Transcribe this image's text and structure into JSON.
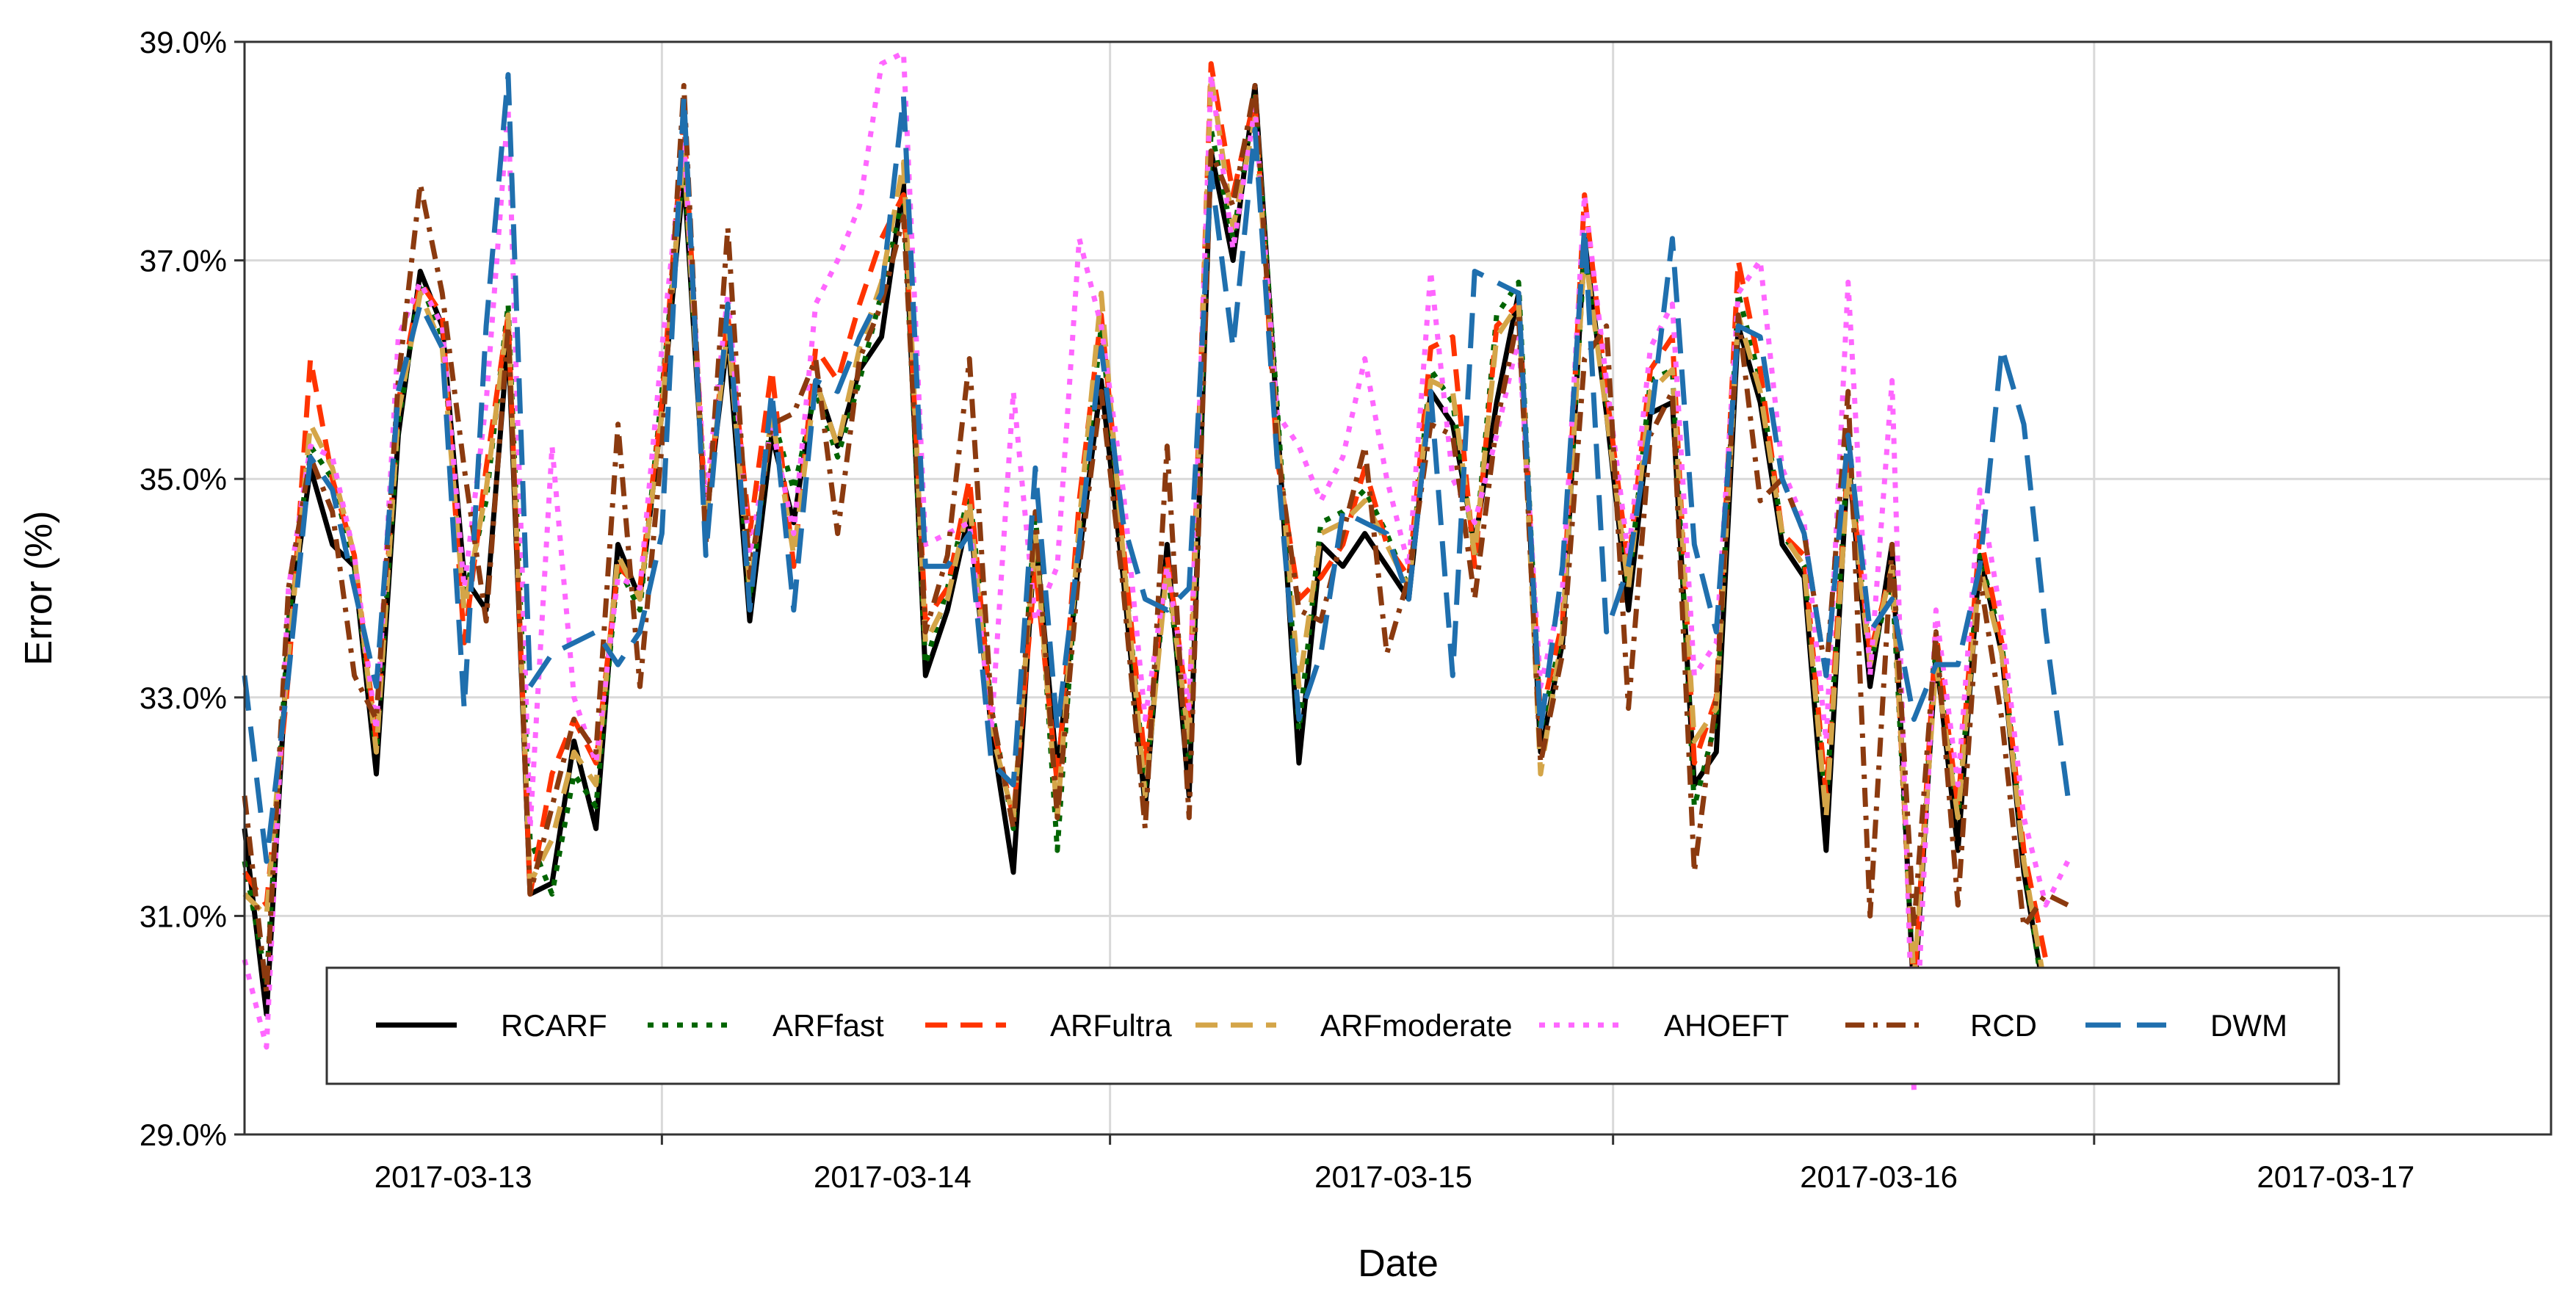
{
  "chart_data": {
    "type": "line",
    "title": "",
    "xlabel": "Date",
    "ylabel": "Error (%)",
    "ylim": [
      29.0,
      39.0
    ],
    "xlim": [
      0,
      105
    ],
    "y_ticks": [
      29.0,
      31.0,
      33.0,
      35.0,
      37.0,
      39.0
    ],
    "y_tick_labels": [
      "29.0%",
      "31.0%",
      "33.0%",
      "35.0%",
      "37.0%",
      "39.0%"
    ],
    "x_ticks": [
      19,
      39.4,
      62.3,
      84.2
    ],
    "x_tick_labels": [
      "2017-03-13",
      "2017-03-14",
      "2017-03-15",
      "2017-03-16",
      "2017-03-17"
    ],
    "x_tick_label_positions": [
      9.5,
      29.5,
      52.3,
      74.4,
      95.2
    ],
    "grid": true,
    "legend_position": "bottom",
    "series": [
      {
        "name": "RCARF",
        "color": "#000000",
        "dash": "solid",
        "values": [
          31.8,
          30.1,
          33.6,
          35.1,
          34.4,
          34.2,
          32.3,
          35.4,
          36.9,
          36.4,
          34.1,
          33.8,
          36.3,
          31.2,
          31.3,
          32.6,
          31.8,
          34.4,
          33.9,
          35.6,
          37.8,
          34.6,
          36.3,
          33.7,
          35.4,
          34.6,
          35.9,
          35.3,
          36.0,
          36.3,
          37.7,
          33.2,
          33.8,
          34.7,
          32.7,
          31.4,
          34.5,
          32.3,
          34.3,
          35.9,
          34.1,
          32.0,
          34.4,
          32.1,
          38.0,
          37.0,
          38.6,
          35.6,
          32.4,
          34.4,
          34.2,
          34.5,
          34.2,
          33.9,
          35.8,
          35.5,
          34.4,
          35.7,
          36.7,
          32.5,
          33.5,
          37.2,
          35.6,
          33.8,
          35.6,
          35.7,
          32.2,
          32.5,
          36.4,
          35.7,
          34.4,
          34.1,
          31.6,
          35.2,
          33.1,
          34.4,
          30.2,
          33.4,
          31.6,
          34.3,
          33.4,
          31.4,
          30.2,
          30.3
        ]
      },
      {
        "name": "ARFfast",
        "color": "#006400",
        "dash": "dotted",
        "values": [
          31.5,
          30.4,
          33.7,
          35.3,
          35.0,
          34.2,
          32.5,
          35.5,
          36.8,
          36.3,
          33.9,
          34.8,
          36.6,
          31.7,
          31.2,
          32.3,
          32.0,
          34.2,
          33.8,
          35.8,
          37.9,
          34.7,
          36.5,
          33.9,
          35.6,
          34.9,
          35.8,
          35.2,
          35.9,
          36.7,
          37.6,
          33.3,
          34.0,
          34.9,
          32.9,
          31.8,
          34.7,
          31.6,
          34.5,
          36.4,
          34.3,
          32.2,
          34.2,
          32.4,
          38.2,
          37.2,
          38.5,
          35.7,
          32.7,
          34.6,
          34.7,
          34.9,
          34.5,
          34.0,
          36.0,
          35.7,
          34.3,
          36.5,
          36.8,
          32.7,
          33.6,
          37.1,
          35.7,
          34.0,
          35.9,
          36.0,
          32.0,
          32.8,
          36.7,
          35.9,
          34.5,
          34.2,
          32.0,
          35.3,
          33.3,
          34.1,
          30.3,
          33.5,
          31.9,
          34.3,
          33.5,
          31.5,
          30.1,
          29.9
        ]
      },
      {
        "name": "ARFultra",
        "color": "#ff3300",
        "dash": "dashed",
        "values": [
          31.4,
          31.1,
          33.2,
          36.1,
          35.0,
          34.3,
          32.6,
          35.7,
          36.8,
          36.5,
          33.5,
          35.1,
          36.5,
          31.2,
          32.3,
          32.8,
          32.4,
          34.2,
          34.0,
          35.7,
          38.3,
          34.6,
          36.5,
          34.5,
          36.0,
          34.2,
          36.2,
          35.9,
          36.6,
          37.2,
          37.6,
          33.7,
          34.0,
          35.0,
          32.8,
          31.9,
          34.2,
          32.2,
          34.8,
          36.5,
          34.4,
          32.4,
          34.3,
          32.8,
          38.8,
          37.6,
          38.5,
          35.2,
          33.9,
          34.1,
          34.4,
          35.1,
          34.4,
          34.1,
          36.2,
          36.3,
          34.2,
          36.4,
          36.6,
          32.8,
          33.7,
          37.6,
          35.8,
          34.2,
          36.0,
          36.3,
          32.4,
          33.0,
          37.0,
          36.0,
          34.5,
          34.3,
          32.1,
          35.2,
          33.4,
          34.2,
          30.3,
          33.6,
          32.0,
          34.5,
          33.5,
          31.6,
          30.6,
          30.3
        ]
      },
      {
        "name": "ARFmoderate",
        "color": "#d4a548",
        "dash": "dashed",
        "values": [
          31.2,
          31.0,
          33.4,
          35.5,
          35.1,
          34.3,
          32.5,
          35.6,
          36.7,
          36.2,
          33.8,
          34.9,
          36.5,
          31.3,
          31.7,
          32.5,
          32.2,
          34.3,
          33.9,
          35.6,
          38.0,
          34.6,
          36.4,
          34.0,
          35.6,
          34.3,
          35.9,
          35.3,
          36.2,
          36.8,
          37.9,
          33.5,
          33.9,
          34.8,
          32.7,
          31.9,
          34.5,
          31.9,
          34.6,
          36.7,
          34.3,
          32.1,
          34.2,
          32.6,
          38.7,
          37.3,
          38.3,
          35.5,
          33.1,
          34.5,
          34.6,
          34.8,
          34.4,
          34.0,
          35.9,
          35.8,
          34.3,
          36.3,
          36.6,
          32.3,
          33.6,
          37.1,
          35.6,
          34.0,
          35.8,
          36.0,
          32.6,
          32.9,
          36.5,
          35.8,
          34.5,
          34.2,
          31.9,
          35.1,
          33.3,
          34.2,
          30.4,
          33.3,
          31.9,
          34.2,
          33.4,
          31.5,
          30.3,
          30.3
        ]
      },
      {
        "name": "AHOEFT",
        "color": "#ff66ff",
        "dash": "dotted",
        "values": [
          30.6,
          29.8,
          34.0,
          35.3,
          35.2,
          34.3,
          32.7,
          36.3,
          36.8,
          36.4,
          34.0,
          35.7,
          38.4,
          31.8,
          35.3,
          33.0,
          32.4,
          34.1,
          34.0,
          36.2,
          38.1,
          34.8,
          36.7,
          34.3,
          35.5,
          34.5,
          36.6,
          37.0,
          37.5,
          38.8,
          38.9,
          34.4,
          34.5,
          34.6,
          32.7,
          35.8,
          33.7,
          34.2,
          37.2,
          36.4,
          34.9,
          32.8,
          34.2,
          32.9,
          38.7,
          37.1,
          38.4,
          35.6,
          35.3,
          34.8,
          35.2,
          36.1,
          35.0,
          34.2,
          36.9,
          35.0,
          34.6,
          35.4,
          36.3,
          33.1,
          34.0,
          37.6,
          35.9,
          34.3,
          36.2,
          36.6,
          33.2,
          33.5,
          36.7,
          37.0,
          35.1,
          34.6,
          32.6,
          36.8,
          33.2,
          35.9,
          29.4,
          33.8,
          32.2,
          34.9,
          33.7,
          31.9,
          31.1,
          31.5
        ]
      },
      {
        "name": "RCD",
        "color": "#8b3a0f",
        "dash": "dashdot",
        "values": [
          32.1,
          30.3,
          34.0,
          35.2,
          34.7,
          33.2,
          32.8,
          35.9,
          37.7,
          36.7,
          35.1,
          33.7,
          36.4,
          31.2,
          32.0,
          32.8,
          32.5,
          35.5,
          33.1,
          35.3,
          38.6,
          34.4,
          37.3,
          34.1,
          35.5,
          35.6,
          36.1,
          34.5,
          36.1,
          36.6,
          37.4,
          33.6,
          34.3,
          36.1,
          32.9,
          31.8,
          34.7,
          31.9,
          34.2,
          35.8,
          34.0,
          31.8,
          35.3,
          31.9,
          38.0,
          37.5,
          38.6,
          35.3,
          33.8,
          33.7,
          34.5,
          35.3,
          33.4,
          34.1,
          35.5,
          35.4,
          33.9,
          35.5,
          36.5,
          32.4,
          33.4,
          36.1,
          36.4,
          32.9,
          35.4,
          35.8,
          31.4,
          33.0,
          36.5,
          34.8,
          35.0,
          34.5,
          33.2,
          35.8,
          31.0,
          34.4,
          30.9,
          33.6,
          31.1,
          34.1,
          32.8,
          30.9,
          31.2,
          31.1
        ]
      },
      {
        "name": "DWM",
        "color": "#1f6fae",
        "dash": "longdash",
        "values": [
          33.2,
          31.5,
          33.2,
          35.2,
          34.9,
          34.0,
          33.1,
          35.8,
          36.6,
          36.2,
          32.9,
          36.4,
          38.7,
          33.1,
          33.4,
          33.5,
          33.6,
          33.3,
          33.6,
          34.5,
          38.5,
          34.3,
          36.6,
          33.8,
          35.8,
          33.8,
          35.9,
          35.8,
          36.3,
          36.7,
          38.5,
          34.2,
          34.2,
          34.5,
          32.4,
          32.2,
          35.1,
          32.7,
          34.4,
          36.2,
          34.6,
          33.9,
          33.8,
          34.0,
          37.8,
          36.2,
          38.2,
          35.2,
          32.8,
          33.4,
          34.7,
          34.6,
          34.5,
          33.9,
          35.8,
          33.2,
          36.9,
          36.8,
          36.7,
          32.7,
          34.2,
          37.3,
          33.6,
          34.2,
          35.5,
          37.2,
          34.4,
          33.6,
          36.4,
          36.3,
          35.0,
          34.5,
          33.2,
          35.4,
          33.6,
          33.9,
          32.8,
          33.3,
          33.3,
          34.2,
          36.2,
          35.5,
          33.6,
          32.1
        ]
      }
    ]
  }
}
